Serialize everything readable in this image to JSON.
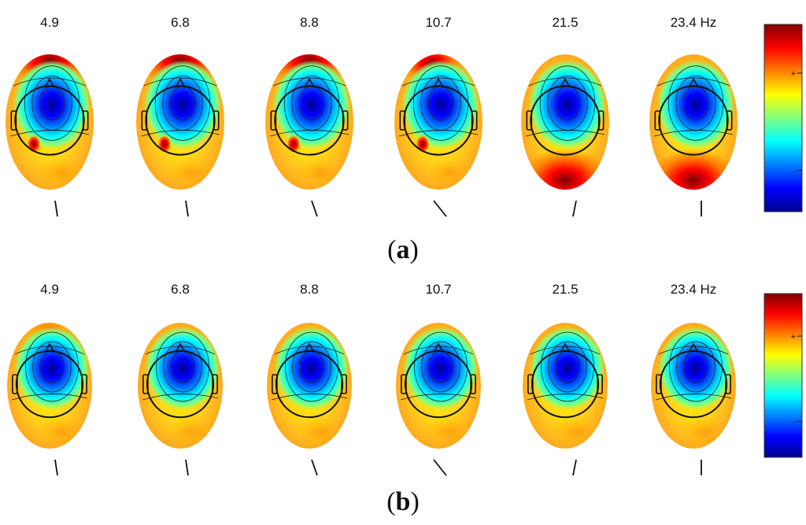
{
  "colormap": [
    "#00008f",
    "#0000ff",
    "#0080ff",
    "#00ffff",
    "#80ff80",
    "#ffff00",
    "#ff8000",
    "#ff0000",
    "#800000"
  ],
  "panels": [
    {
      "label": "(a)",
      "label_letter": "a",
      "colorbar_ticks": [
        "+",
        "-"
      ],
      "maps": [
        {
          "frequency": "4.9",
          "nose_direction": "slight-left",
          "features": [
            "strong-front-red",
            "posterior-hotspot"
          ]
        },
        {
          "frequency": "6.8",
          "nose_direction": "slight-left",
          "features": [
            "strong-front-red",
            "posterior-hotspot"
          ]
        },
        {
          "frequency": "8.8",
          "nose_direction": "left",
          "features": [
            "strong-front-red",
            "posterior-hotspot"
          ]
        },
        {
          "frequency": "10.7",
          "nose_direction": "left-far",
          "features": [
            "front-red",
            "posterior-hotspot"
          ]
        },
        {
          "frequency": "21.5",
          "nose_direction": "slight-right",
          "features": [
            "back-red"
          ]
        },
        {
          "frequency": "23.4 Hz",
          "nose_direction": "straight",
          "features": [
            "back-red"
          ]
        }
      ]
    },
    {
      "label": "(b)",
      "label_letter": "b",
      "colorbar_ticks": [
        "+",
        "-"
      ],
      "maps": [
        {
          "frequency": "4.9",
          "nose_direction": "slight-left",
          "features": [
            "mild-front"
          ]
        },
        {
          "frequency": "6.8",
          "nose_direction": "slight-left",
          "features": []
        },
        {
          "frequency": "8.8",
          "nose_direction": "left",
          "features": []
        },
        {
          "frequency": "10.7",
          "nose_direction": "left-far",
          "features": []
        },
        {
          "frequency": "21.5",
          "nose_direction": "slight-right",
          "features": []
        },
        {
          "frequency": "23.4 Hz",
          "nose_direction": "straight",
          "features": []
        }
      ]
    }
  ]
}
